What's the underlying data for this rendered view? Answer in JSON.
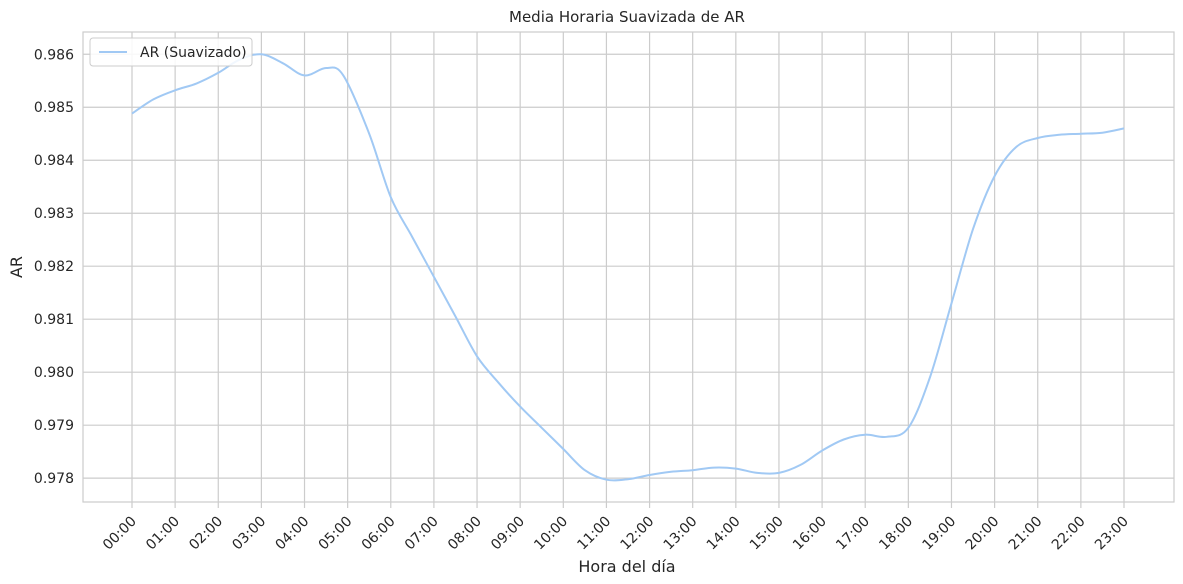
{
  "chart_data": {
    "type": "line",
    "title": "Media Horaria Suavizada de AR",
    "xlabel": "Hora del día",
    "ylabel": "AR",
    "categories": [
      "00:00",
      "01:00",
      "02:00",
      "03:00",
      "04:00",
      "05:00",
      "06:00",
      "07:00",
      "08:00",
      "09:00",
      "10:00",
      "11:00",
      "12:00",
      "13:00",
      "14:00",
      "15:00",
      "16:00",
      "17:00",
      "18:00",
      "19:00",
      "20:00",
      "21:00",
      "22:00",
      "23:00"
    ],
    "yticks": [
      "0.978",
      "0.979",
      "0.980",
      "0.981",
      "0.982",
      "0.983",
      "0.984",
      "0.985",
      "0.986"
    ],
    "ylim": [
      0.97755,
      0.98642
    ],
    "grid": true,
    "legend_position": "top-left",
    "series": [
      {
        "name": "AR (Suavizado)",
        "color": "#a1c9f4",
        "points": [
          [
            0.0,
            0.98488
          ],
          [
            0.5,
            0.98515
          ],
          [
            1.0,
            0.98532
          ],
          [
            1.5,
            0.98545
          ],
          [
            2.0,
            0.98565
          ],
          [
            2.5,
            0.9859
          ],
          [
            3.0,
            0.986
          ],
          [
            3.5,
            0.98583
          ],
          [
            4.0,
            0.9856
          ],
          [
            4.5,
            0.98574
          ],
          [
            4.9,
            0.9856
          ],
          [
            5.5,
            0.9845
          ],
          [
            6.0,
            0.9833
          ],
          [
            6.5,
            0.98255
          ],
          [
            7.0,
            0.9818
          ],
          [
            7.5,
            0.98105
          ],
          [
            8.0,
            0.9803
          ],
          [
            8.5,
            0.9798
          ],
          [
            9.0,
            0.97935
          ],
          [
            9.5,
            0.97895
          ],
          [
            10.0,
            0.97855
          ],
          [
            10.5,
            0.97815
          ],
          [
            11.0,
            0.97797
          ],
          [
            11.5,
            0.97798
          ],
          [
            12.0,
            0.97806
          ],
          [
            12.5,
            0.97812
          ],
          [
            13.0,
            0.97815
          ],
          [
            13.5,
            0.9782
          ],
          [
            14.0,
            0.97818
          ],
          [
            14.5,
            0.9781
          ],
          [
            15.0,
            0.9781
          ],
          [
            15.5,
            0.97825
          ],
          [
            16.0,
            0.97852
          ],
          [
            16.5,
            0.97873
          ],
          [
            17.0,
            0.97882
          ],
          [
            17.5,
            0.97878
          ],
          [
            18.0,
            0.97895
          ],
          [
            18.5,
            0.9799
          ],
          [
            19.0,
            0.9813
          ],
          [
            19.5,
            0.9827
          ],
          [
            20.0,
            0.9837
          ],
          [
            20.5,
            0.98425
          ],
          [
            21.0,
            0.98442
          ],
          [
            21.5,
            0.98448
          ],
          [
            22.0,
            0.9845
          ],
          [
            22.5,
            0.98452
          ],
          [
            23.0,
            0.9846
          ]
        ]
      }
    ]
  }
}
